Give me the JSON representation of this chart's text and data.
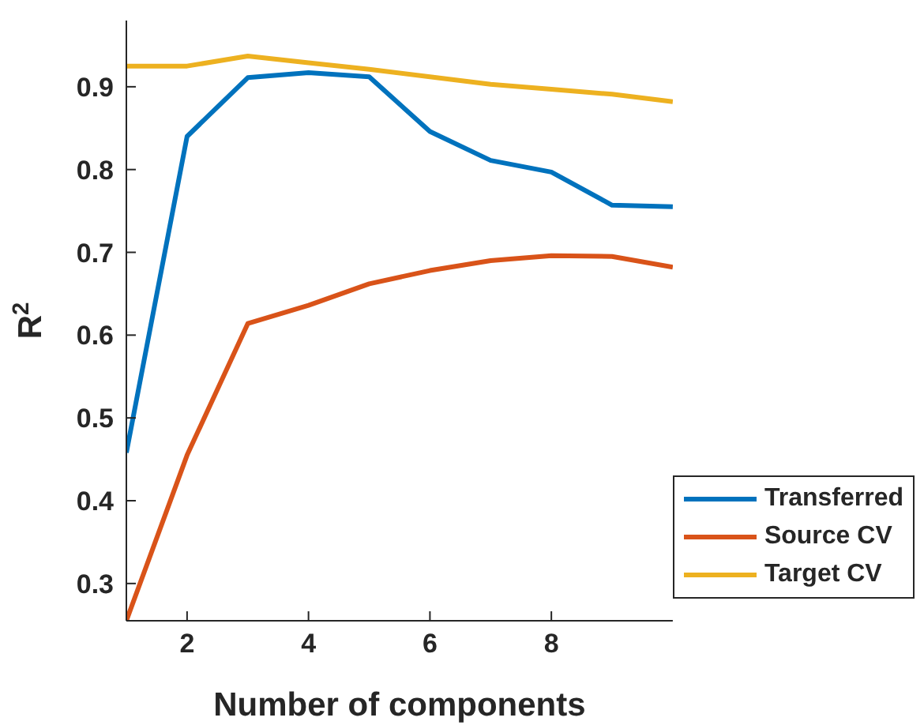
{
  "chart_data": {
    "type": "line",
    "xlabel": "Number of components",
    "ylabel": "R$^{2}$",
    "x": [
      1,
      2,
      3,
      4,
      5,
      6,
      7,
      8,
      9,
      10
    ],
    "xlim": [
      1,
      10
    ],
    "xticks": [
      2,
      4,
      6,
      8
    ],
    "ylim": [
      0.255,
      0.98
    ],
    "yticks": [
      0.3,
      0.4,
      0.5,
      0.6,
      0.7,
      0.8,
      0.9
    ],
    "legend": "bottom right",
    "grid": false,
    "marker": "none",
    "line_style": "solid",
    "series": [
      {
        "name": "Transferred",
        "color": "#0072bd",
        "values": [
          0.458,
          0.84,
          0.911,
          0.917,
          0.912,
          0.846,
          0.811,
          0.797,
          0.757,
          0.755
        ]
      },
      {
        "name": "Source CV",
        "color": "#d95319",
        "values": [
          0.255,
          0.455,
          0.614,
          0.636,
          0.662,
          0.678,
          0.69,
          0.696,
          0.695,
          0.682
        ]
      },
      {
        "name": "Target CV",
        "color": "#edb120",
        "values": [
          0.925,
          0.925,
          0.937,
          0.929,
          0.921,
          0.912,
          0.903,
          0.897,
          0.891,
          0.882
        ]
      }
    ]
  }
}
